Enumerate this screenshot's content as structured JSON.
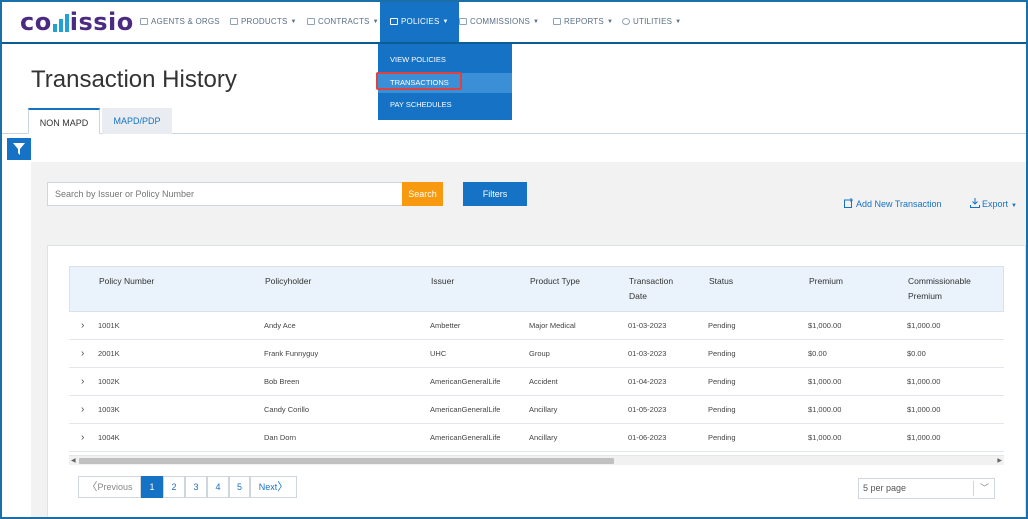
{
  "brand": {
    "logo_text_pre": "co",
    "logo_text_post": "issio",
    "color": "#4b2a82",
    "accent": "#22a0d8"
  },
  "nav": {
    "items": [
      {
        "label": "AGENTS & ORGS",
        "icon": "people-icon",
        "dropdown": false
      },
      {
        "label": "PRODUCTS",
        "icon": "box-icon",
        "dropdown": true
      },
      {
        "label": "CONTRACTS",
        "icon": "contract-icon",
        "dropdown": true
      },
      {
        "label": "POLICIES",
        "icon": "document-icon",
        "dropdown": true,
        "active": true
      },
      {
        "label": "COMMISSIONS",
        "icon": "commission-icon",
        "dropdown": true
      },
      {
        "label": "REPORTS",
        "icon": "report-icon",
        "dropdown": true
      },
      {
        "label": "UTILITIES",
        "icon": "globe-icon",
        "dropdown": true
      }
    ],
    "policies_menu": [
      "VIEW POLICIES",
      "TRANSACTIONS",
      "PAY SCHEDULES"
    ],
    "active_color": "#1672c4"
  },
  "page": {
    "title": "Transaction History"
  },
  "tabs": [
    "NON MAPD",
    "MAPD/PDP"
  ],
  "search": {
    "placeholder": "Search by Issuer or Policy Number",
    "button": "Search"
  },
  "filters_label": "Filters",
  "add_transaction_label": "Add New Transaction",
  "export_label": "Export",
  "table": {
    "headers": [
      "Policy Number",
      "Policyholder",
      "Issuer",
      "Product Type",
      "Transaction Date",
      "Status",
      "Premium",
      "Commissionable Premium"
    ],
    "rows": [
      [
        "1001K",
        "Andy Ace",
        "Ambetter",
        "Major Medical",
        "01-03-2023",
        "Pending",
        "$1,000.00",
        "$1,000.00"
      ],
      [
        "2001K",
        "Frank Funnyguy",
        "UHC",
        "Group",
        "01-03-2023",
        "Pending",
        "$0.00",
        "$0.00"
      ],
      [
        "1002K",
        "Bob Breen",
        "AmericanGeneralLife",
        "Accident",
        "01-04-2023",
        "Pending",
        "$1,000.00",
        "$1,000.00"
      ],
      [
        "1003K",
        "Candy Corillo",
        "AmericanGeneralLife",
        "Ancillary",
        "01-05-2023",
        "Pending",
        "$1,000.00",
        "$1,000.00"
      ],
      [
        "1004K",
        "Dan Dorn",
        "AmericanGeneralLife",
        "Ancillary",
        "01-06-2023",
        "Pending",
        "$1,000.00",
        "$1,000.00"
      ]
    ]
  },
  "pagination": {
    "previous": "Previous",
    "pages": [
      "1",
      "2",
      "3",
      "4",
      "5"
    ],
    "current": "1",
    "next": "Next",
    "per_page": "5 per page"
  }
}
